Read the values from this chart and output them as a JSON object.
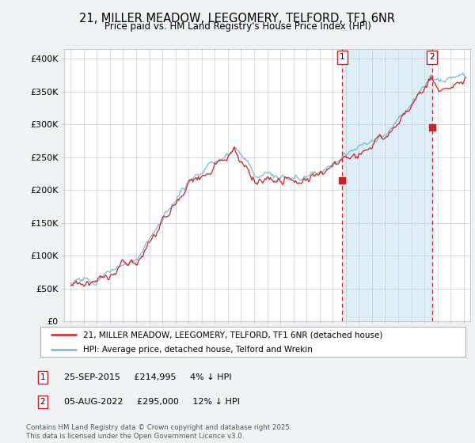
{
  "title1": "21, MILLER MEADOW, LEEGOMERY, TELFORD, TF1 6NR",
  "title2": "Price paid vs. HM Land Registry's House Price Index (HPI)",
  "ylabel_ticks": [
    "£0",
    "£50K",
    "£100K",
    "£150K",
    "£200K",
    "£250K",
    "£300K",
    "£350K",
    "£400K"
  ],
  "ytick_values": [
    0,
    50000,
    100000,
    150000,
    200000,
    250000,
    300000,
    350000,
    400000
  ],
  "xlim": [
    1994.5,
    2025.5
  ],
  "ylim": [
    0,
    415000
  ],
  "legend_line1": "21, MILLER MEADOW, LEEGOMERY, TELFORD, TF1 6NR (detached house)",
  "legend_line2": "HPI: Average price, detached house, Telford and Wrekin",
  "marker1_year": 2015.73,
  "marker1_price": 214995,
  "marker1_label": "1",
  "marker2_year": 2022.59,
  "marker2_price": 295000,
  "marker2_label": "2",
  "marker1_row": "25-SEP-2015     £214,995     4% ↓ HPI",
  "marker2_row": "05-AUG-2022     £295,000     12% ↓ HPI",
  "footer": "Contains HM Land Registry data © Crown copyright and database right 2025.\nThis data is licensed under the Open Government Licence v3.0.",
  "hpi_color": "#7bb8d8",
  "price_color": "#cc2222",
  "shade_color": "#ddeef7",
  "background_color": "#eef2f7",
  "plot_bg_color": "#ffffff",
  "grid_color": "#cccccc"
}
